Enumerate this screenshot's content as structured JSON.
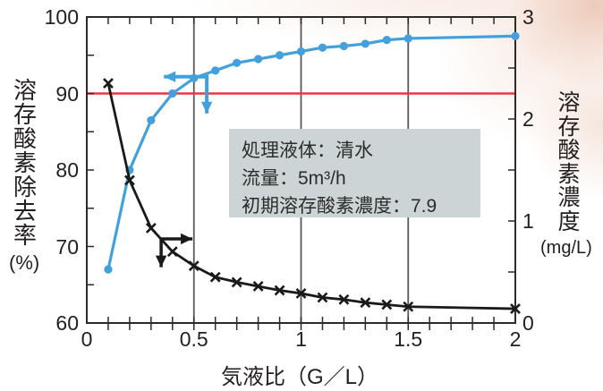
{
  "chart_data": {
    "type": "line",
    "title": "",
    "x": [
      0.1,
      0.2,
      0.3,
      0.4,
      0.5,
      0.6,
      0.7,
      0.8,
      0.9,
      1.0,
      1.1,
      1.2,
      1.3,
      1.4,
      1.5,
      2.0
    ],
    "series": [
      {
        "name": "溶存酸素除去率",
        "axis": "left",
        "marker": "circle",
        "color": "#42a0dc",
        "values": [
          67,
          80,
          86.5,
          90,
          92,
          93,
          94,
          94.5,
          95,
          95.5,
          96,
          96.2,
          96.5,
          97,
          97.2,
          97.5
        ]
      },
      {
        "name": "溶存酸素濃度",
        "axis": "right",
        "marker": "x",
        "color": "#1a1a1a",
        "values": [
          2.35,
          1.4,
          0.93,
          0.7,
          0.56,
          0.45,
          0.4,
          0.36,
          0.32,
          0.29,
          0.25,
          0.23,
          0.2,
          0.18,
          0.16,
          0.14
        ]
      }
    ],
    "x_axis": {
      "label": "気液比（G／L）",
      "min": 0,
      "max": 2,
      "major_ticks": [
        0,
        0.5,
        1,
        1.5,
        2
      ],
      "tick_labels": [
        "0",
        "0.5",
        "1",
        "1.5",
        "2"
      ],
      "minor_tick_step": 0.1,
      "gridlines": [
        0.5,
        1,
        1.5
      ]
    },
    "left_axis": {
      "label": "溶存酸素除去率",
      "unit": "(%)",
      "min": 60,
      "max": 100,
      "major_ticks": [
        60,
        70,
        80,
        90,
        100
      ],
      "tick_labels": [
        "60",
        "70",
        "80",
        "90",
        "100"
      ],
      "minor_tick_step": 5
    },
    "right_axis": {
      "label": "溶存酸素濃度",
      "unit": "(mg/L)",
      "min": 0,
      "max": 3,
      "major_ticks": [
        0,
        1,
        2,
        3
      ],
      "tick_labels": [
        "0",
        "1",
        "2",
        "3"
      ],
      "minor_tick_step": 0.5
    },
    "reference_line": {
      "axis": "left",
      "value": 90,
      "color": "#e8383f"
    },
    "annotation_arrows": [
      {
        "name": "blue-curve-left-axis-arrow",
        "color": "#42a0dc",
        "width": 4,
        "axis": "left",
        "x": [
          0.36,
          0.56,
          0.56
        ],
        "y": [
          92.2,
          92.2,
          87.4
        ]
      },
      {
        "name": "black-curve-right-axis-arrow",
        "color": "#1a1a1a",
        "width": 3.5,
        "axis": "left",
        "x": [
          0.493,
          0.347,
          0.347
        ],
        "y": [
          71,
          71,
          67.3
        ]
      }
    ],
    "legend_position": "none",
    "grid": "vertical-only"
  },
  "info_box": {
    "lines": [
      "処理液体：清水",
      "流量：5m³/h",
      "初期溶存酸素濃度：7.9"
    ]
  },
  "colors": {
    "blue_series": "#42a0dc",
    "black_series": "#1a1a1a",
    "reference_red": "#e8383f",
    "gridline": "#595959",
    "axis_frame": "#2b2b2b",
    "info_box_bg": "#ccd4d5"
  }
}
